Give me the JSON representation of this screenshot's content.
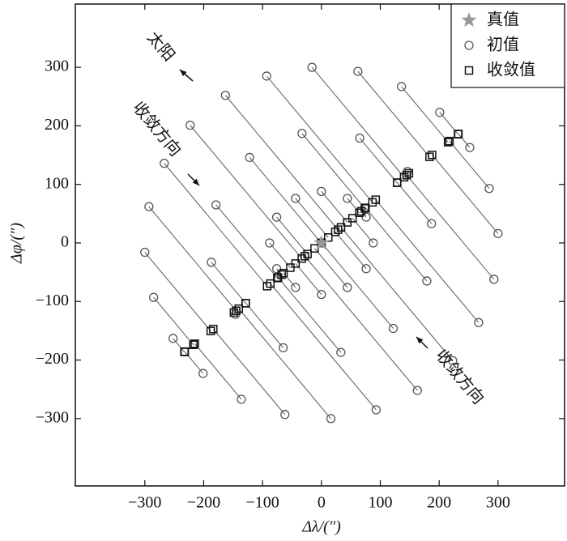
{
  "chart_data": {
    "type": "scatter",
    "xlabel": "Δλ/(″)",
    "ylabel": "Δφ/(″)",
    "xlim": [
      -418,
      413
    ],
    "ylim": [
      -415,
      408
    ],
    "xticks": [
      {
        "value": -300,
        "label": "−300"
      },
      {
        "value": -200,
        "label": "−200"
      },
      {
        "value": -100,
        "label": "−100"
      },
      0,
      100,
      200,
      300
    ],
    "yticks": [
      {
        "value": -300,
        "label": "−300"
      },
      {
        "value": -200,
        "label": "−200"
      },
      {
        "value": -100,
        "label": "−100"
      },
      0,
      100,
      200,
      300
    ],
    "legend": "upper right",
    "series": [
      {
        "name": "真值",
        "color": "#999999",
        "marker": "star",
        "x": [
          0
        ],
        "values": [
          0
        ]
      },
      {
        "name": "初值",
        "color": "#555555",
        "marker": "circle",
        "x": [
          300,
          285,
          252,
          201,
          136,
          62,
          -16,
          -93,
          -163,
          -223,
          -267,
          -293,
          -300,
          -285,
          -252,
          -201,
          -136,
          -62,
          16,
          93,
          163,
          223,
          267,
          293,
          187,
          146,
          65,
          -33,
          -122,
          -179,
          -187,
          -146,
          -65,
          33,
          122,
          179,
          88,
          76,
          44,
          0,
          -44,
          -76,
          -88,
          -76,
          -44,
          0,
          44,
          76
        ],
        "values": [
          16,
          93,
          163,
          223,
          267,
          293,
          300,
          285,
          252,
          201,
          136,
          62,
          -16,
          -93,
          -163,
          -223,
          -267,
          -293,
          -300,
          -285,
          -252,
          -201,
          -136,
          -62,
          33,
          122,
          179,
          187,
          146,
          65,
          -33,
          -122,
          -179,
          -187,
          -146,
          -65,
          0,
          44,
          76,
          88,
          76,
          44,
          0,
          -44,
          -76,
          -88,
          -76,
          -44
        ]
      },
      {
        "name": "收敛值",
        "color": "#111111",
        "marker": "square",
        "x": [
          188,
          217.5,
          232.7,
          232.1,
          215.1,
          183.7,
          140.4,
          86.7,
          28.2,
          -33.3,
          -92.2,
          -144.8,
          -188,
          -217.5,
          -232.7,
          -232.1,
          -215.1,
          -183.7,
          -140.4,
          -86.7,
          -28.2,
          33.3,
          92.2,
          144.8,
          128.7,
          148.6,
          128.5,
          73.7,
          -0.2,
          -74.9,
          -128.7,
          -148.6,
          -128.5,
          -73.7,
          0.2,
          74.9,
          52.8,
          67.6,
          64.4,
          44,
          11.6,
          -23.6,
          -52.8,
          -67.6,
          -64.4,
          -44,
          -11.6,
          23.6
        ],
        "values": [
          150.4,
          174,
          186.2,
          185.7,
          172.1,
          147,
          112.3,
          69.4,
          22.6,
          -26.6,
          -73.8,
          -115.8,
          -150.4,
          -174,
          -186.2,
          -185.7,
          -172.1,
          -147,
          -112.3,
          -69.4,
          -22.6,
          26.6,
          73.8,
          115.8,
          103,
          118.9,
          102.8,
          59,
          -0.2,
          -59.9,
          -103,
          -118.9,
          -102.8,
          -59,
          0.2,
          59.9,
          42.2,
          54.1,
          51.5,
          35.2,
          9.3,
          -18.9,
          -42.2,
          -54.1,
          -51.5,
          -35.2,
          -9.3,
          18.9
        ]
      }
    ],
    "annotations": [
      "太阳",
      "收敛方向",
      "收敛方向"
    ]
  }
}
